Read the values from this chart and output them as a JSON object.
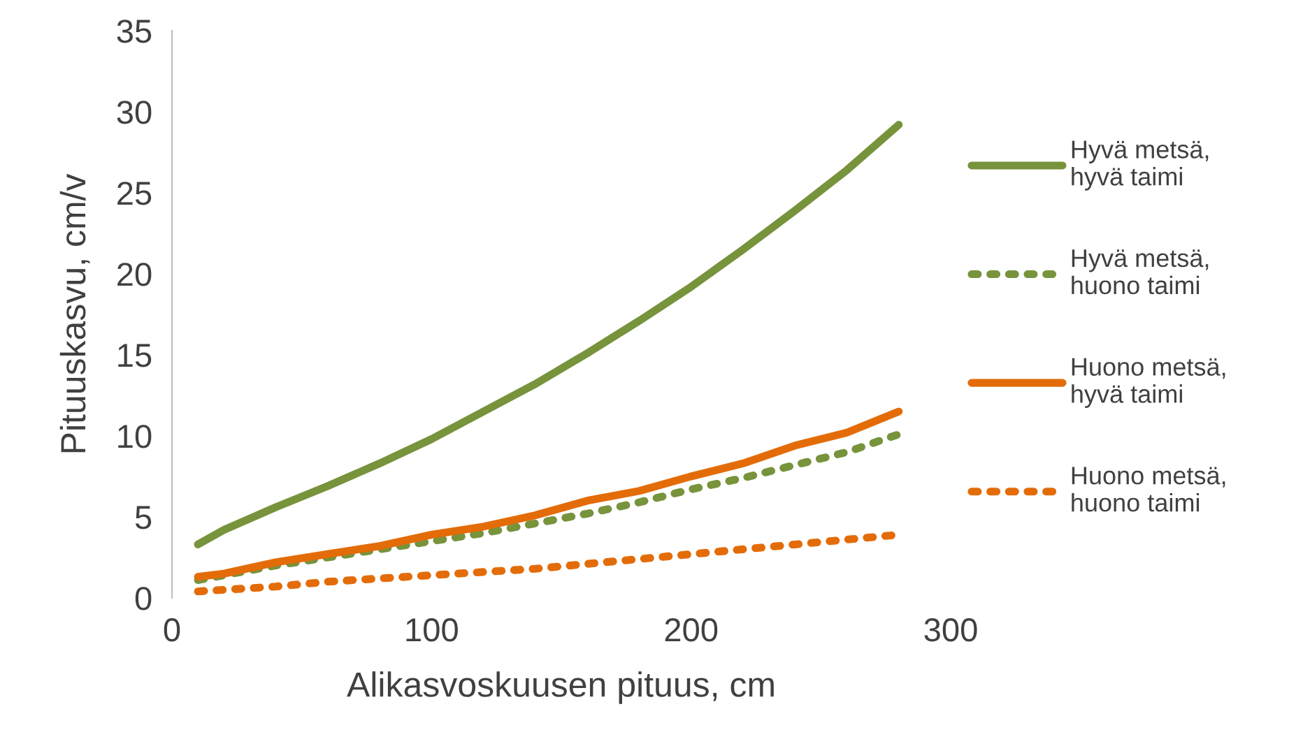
{
  "chart_data": {
    "type": "line",
    "xlabel": "Alikasvoskuusen pituus, cm",
    "ylabel": "Pituuskasvu, cm/v",
    "x": [
      10,
      20,
      40,
      60,
      80,
      100,
      120,
      140,
      160,
      180,
      200,
      220,
      240,
      260,
      280
    ],
    "xlim": [
      0,
      300
    ],
    "xticks": [
      0,
      100,
      200,
      300
    ],
    "ylim": [
      0,
      35
    ],
    "yticks": [
      0,
      5,
      10,
      15,
      20,
      25,
      30,
      35
    ],
    "grid": false,
    "legend": "right",
    "marker": "none",
    "series": [
      {
        "name": "Hyvä metsä,\nhyvä taimi",
        "color": "#77933c",
        "line_style": "solid",
        "values": [
          3.3,
          4.2,
          5.6,
          6.9,
          8.3,
          9.8,
          11.5,
          13.2,
          15.1,
          17.1,
          19.2,
          21.5,
          23.9,
          26.4,
          29.2
        ]
      },
      {
        "name": "Hyvä metsä,\nhuono taimi",
        "color": "#77933c",
        "line_style": "dotted",
        "values": [
          1.1,
          1.4,
          2.0,
          2.5,
          3.0,
          3.5,
          4.0,
          4.6,
          5.2,
          5.9,
          6.7,
          7.4,
          8.2,
          9.0,
          10.1
        ]
      },
      {
        "name": "Huono metsä,\nhyvä taimi",
        "color": "#e36c09",
        "line_style": "solid",
        "values": [
          1.3,
          1.5,
          2.2,
          2.7,
          3.2,
          3.9,
          4.4,
          5.1,
          6.0,
          6.6,
          7.5,
          8.3,
          9.4,
          10.2,
          11.5
        ]
      },
      {
        "name": "Huono metsä,\nhuono taimi",
        "color": "#e36c09",
        "line_style": "dotted",
        "values": [
          0.4,
          0.5,
          0.7,
          1.0,
          1.2,
          1.4,
          1.6,
          1.8,
          2.1,
          2.4,
          2.7,
          3.0,
          3.3,
          3.6,
          3.9
        ]
      }
    ]
  }
}
